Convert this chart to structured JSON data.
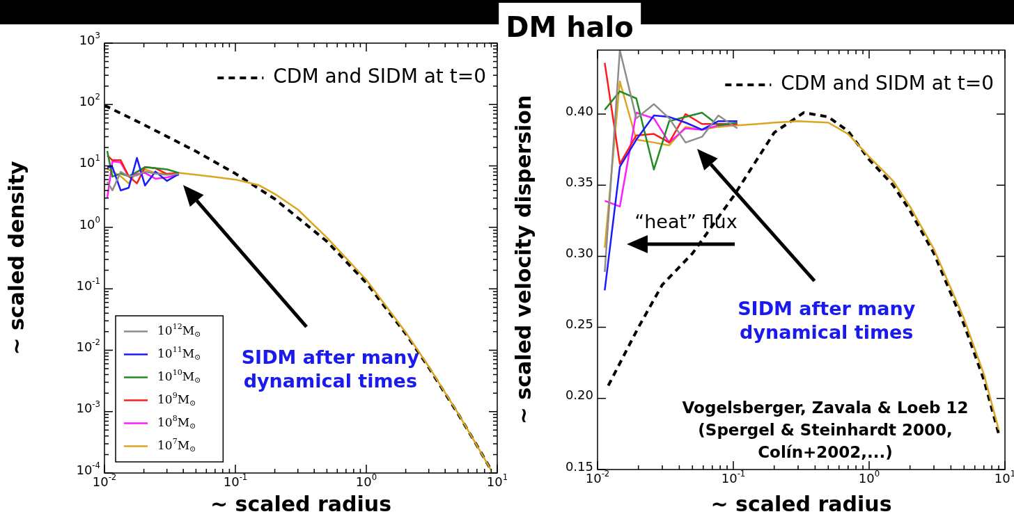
{
  "chart_data": [
    {
      "type": "line",
      "xlabel": "~ scaled radius",
      "ylabel": "~ scaled density",
      "log": "xy",
      "legend": "bottom left",
      "xlim": [
        0.01,
        10
      ],
      "ylim": [
        0.0001,
        1000
      ],
      "xticks": [
        {
          "value": 0.01,
          "label": "10$^{-2}$"
        },
        {
          "value": 0.1,
          "label": "10$^{-1}$"
        },
        {
          "value": 1,
          "label": "10$^{0}$"
        },
        {
          "value": 10,
          "label": "10$^{1}$"
        }
      ],
      "yticks": [
        {
          "value": 0.0001,
          "label": "10$^{-4}$"
        },
        {
          "value": 0.001,
          "label": "10$^{-3}$"
        },
        {
          "value": 0.01,
          "label": "10$^{-2}$"
        },
        {
          "value": 0.1,
          "label": "10$^{-1}$"
        },
        {
          "value": 1,
          "label": "10$^{0}$"
        },
        {
          "value": 10,
          "label": "10$^{1}$"
        },
        {
          "value": 100,
          "label": "10$^{2}$"
        },
        {
          "value": 1000,
          "label": "10$^{3}$"
        }
      ],
      "x": [
        0.0105,
        0.0115,
        0.0133,
        0.0153,
        0.0177,
        0.0204,
        0.0245,
        0.03,
        0.037,
        0.05,
        0.07,
        0.1,
        0.15,
        0.2,
        0.3,
        0.5,
        1,
        2,
        3,
        5,
        7,
        9
      ],
      "series": [
        {
          "name": "10$^{12}$M$_{⊙}$",
          "color": "#8c8c8c",
          "values": [
            5.5,
            4.0,
            8.0,
            6.8,
            7.0,
            8.1,
            7.5,
            7.2,
            7.4,
            null,
            null,
            null,
            null,
            null,
            null,
            null,
            null,
            null,
            null,
            null,
            null,
            null
          ]
        },
        {
          "name": "10$^{11}$M$_{⊙}$",
          "color": "#1a1aff",
          "values": [
            9.6,
            9.6,
            4.0,
            4.4,
            13.5,
            4.8,
            8.1,
            5.7,
            7.4,
            null,
            null,
            null,
            null,
            null,
            null,
            null,
            null,
            null,
            null,
            null,
            null,
            null
          ]
        },
        {
          "name": "10$^{10}$M$_{⊙}$",
          "color": "#228b22",
          "values": [
            17.5,
            6.7,
            7.5,
            6.8,
            8.0,
            9.6,
            9.2,
            8.8,
            7.7,
            null,
            null,
            null,
            null,
            null,
            null,
            null,
            null,
            null,
            null,
            null,
            null,
            null
          ]
        },
        {
          "name": "10$^{9}$M$_{⊙}$",
          "color": "#ff1a1a",
          "values": [
            14.8,
            12.4,
            12.4,
            6.8,
            5.2,
            9.6,
            9.2,
            7.4,
            7.7,
            null,
            null,
            null,
            null,
            null,
            null,
            null,
            null,
            null,
            null,
            null,
            null,
            null
          ]
        },
        {
          "name": "10$^{8}$M$_{⊙}$",
          "color": "#ff1aff",
          "values": [
            3.0,
            11.9,
            11.4,
            6.8,
            7.4,
            7.7,
            6.2,
            6.5,
            7.2,
            null,
            null,
            null,
            null,
            null,
            null,
            null,
            null,
            null,
            null,
            null,
            null,
            null
          ]
        },
        {
          "name": "10$^{7}$M$_{⊙}$",
          "color": "#daa520",
          "values": [
            9.0,
            8.1,
            6.8,
            5.2,
            8.0,
            8.8,
            7.7,
            7.4,
            7.7,
            7.2,
            6.6,
            6.0,
            4.9,
            3.5,
            1.95,
            0.68,
            0.14,
            0.0195,
            0.0054,
            0.00095,
            0.00028,
            0.00011
          ]
        },
        {
          "name": "CDM and SIDM at t=0",
          "color": "#000000",
          "line_style": "dashed",
          "x": [
            0.01,
            0.02,
            0.05,
            0.1,
            0.2,
            0.5,
            1,
            2,
            3,
            5,
            7,
            9
          ],
          "values": [
            97,
            47,
            17.3,
            7.5,
            2.9,
            0.59,
            0.125,
            0.0185,
            0.0052,
            0.00093,
            0.00028,
            0.000111
          ]
        }
      ],
      "annotations": [
        "SIDM after many\ndynamical times"
      ]
    },
    {
      "type": "line",
      "title": "DM halo",
      "xlabel": "~ scaled radius",
      "ylabel": "~ scaled velocity dispersion",
      "log": "x",
      "legend": "top right",
      "xlim": [
        0.01,
        10
      ],
      "ylim": [
        0.15,
        0.445
      ],
      "xticks": [
        {
          "value": 0.01,
          "label": "10$^{-2}$"
        },
        {
          "value": 0.1,
          "label": "10$^{-1}$"
        },
        {
          "value": 1,
          "label": "10$^{0}$"
        },
        {
          "value": 10,
          "label": "10$^{1}$"
        }
      ],
      "yticks": [
        0.15,
        {
          "value": 0.2,
          "label": "0.20"
        },
        0.25,
        {
          "value": 0.3,
          "label": "0.30"
        },
        0.35,
        {
          "value": 0.4,
          "label": "0.40"
        }
      ],
      "x": [
        0.0113,
        0.0146,
        0.0193,
        0.026,
        0.0337,
        0.0445,
        0.0588,
        0.0776,
        0.107,
        0.15,
        0.2,
        0.3,
        0.5,
        0.7,
        1,
        1.5,
        2,
        3,
        5,
        7,
        9
      ],
      "series": [
        {
          "color": "#8c8c8c",
          "values": [
            0.289,
            0.445,
            0.397,
            0.407,
            0.397,
            0.38,
            0.384,
            0.399,
            0.39,
            null,
            null,
            null,
            null,
            null,
            null,
            null,
            null,
            null,
            null,
            null,
            null
          ]
        },
        {
          "color": "#1a1aff",
          "values": [
            0.276,
            0.363,
            0.382,
            0.399,
            0.398,
            0.394,
            0.389,
            0.395,
            0.395,
            null,
            null,
            null,
            null,
            null,
            null,
            null,
            null,
            null,
            null,
            null,
            null
          ]
        },
        {
          "color": "#228b22",
          "values": [
            0.403,
            0.416,
            0.411,
            0.361,
            0.395,
            0.398,
            0.401,
            0.392,
            0.394,
            null,
            null,
            null,
            null,
            null,
            null,
            null,
            null,
            null,
            null,
            null,
            null
          ]
        },
        {
          "color": "#ff1a1a",
          "values": [
            0.436,
            0.365,
            0.385,
            0.386,
            0.38,
            0.4,
            0.393,
            0.393,
            0.393,
            null,
            null,
            null,
            null,
            null,
            null,
            null,
            null,
            null,
            null,
            null,
            null
          ]
        },
        {
          "color": "#ff1aff",
          "values": [
            0.339,
            0.335,
            0.401,
            0.397,
            0.38,
            0.39,
            0.389,
            0.392,
            0.393,
            null,
            null,
            null,
            null,
            null,
            null,
            null,
            null,
            null,
            null,
            null,
            null
          ]
        },
        {
          "color": "#daa520",
          "values": [
            0.306,
            0.423,
            0.382,
            0.38,
            0.378,
            0.391,
            0.389,
            0.391,
            0.392,
            0.393,
            0.394,
            0.395,
            0.394,
            0.386,
            0.37,
            0.353,
            0.335,
            0.305,
            0.256,
            0.217,
            0.178
          ]
        },
        {
          "name": "CDM and SIDM at t=0",
          "color": "#000000",
          "line_style": "dashed",
          "x": [
            0.012,
            0.02,
            0.03,
            0.05,
            0.1,
            0.2,
            0.33,
            0.5,
            0.7,
            1,
            1.5,
            2,
            3,
            5,
            7,
            9
          ],
          "values": [
            0.209,
            0.25,
            0.28,
            0.302,
            0.342,
            0.387,
            0.401,
            0.398,
            0.388,
            0.368,
            0.35,
            0.332,
            0.302,
            0.252,
            0.213,
            0.175
          ]
        }
      ],
      "annotations": [
        "“heat” flux",
        "SIDM after many\ndynamical times",
        "Vogelsberger, Zavala & Loeb 12\n(Spergel & Steinhardt 2000,\nColín+2002,...)"
      ]
    }
  ]
}
